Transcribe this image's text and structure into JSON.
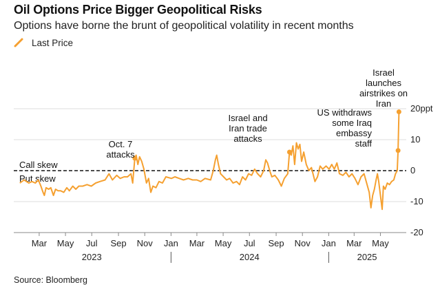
{
  "header": {
    "title": "Oil Options Price Bigger Geopolitical Risks",
    "subtitle": "Options have borne the brunt of geopolitical volatility in recent months"
  },
  "legend": {
    "label": "Last Price",
    "color": "#f5a030"
  },
  "source": "Source: Bloomberg",
  "chart_data": {
    "type": "line",
    "ylim": [
      -20,
      20
    ],
    "y_ticks": [
      20,
      10,
      0,
      -10,
      -20
    ],
    "y_tick_labels": [
      "20ppt",
      "10",
      "0",
      "-10",
      "-20"
    ],
    "grid": true,
    "x_ticks": [
      "Mar",
      "May",
      "Jul",
      "Sep",
      "Nov",
      "Jan",
      "Mar",
      "May",
      "Jul",
      "Sep",
      "Nov",
      "Jan",
      "Mar",
      "May"
    ],
    "years": [
      "2023",
      "2024",
      "2025"
    ],
    "reference_labels": [
      "Call skew",
      "Put skew"
    ],
    "series": [
      {
        "name": "Last Price",
        "color": "#f5a030",
        "points": [
          [
            "2023-01-15",
            -4.0
          ],
          [
            "2023-01-25",
            -3.0
          ],
          [
            "2023-02-05",
            -4.0
          ],
          [
            "2023-02-12",
            -3.5
          ],
          [
            "2023-02-20",
            -4.0
          ],
          [
            "2023-02-27",
            -3.0
          ],
          [
            "2023-03-05",
            -5.0
          ],
          [
            "2023-03-10",
            -7.0
          ],
          [
            "2023-03-13",
            -8.0
          ],
          [
            "2023-03-17",
            -5.5
          ],
          [
            "2023-03-23",
            -6.0
          ],
          [
            "2023-03-28",
            -5.5
          ],
          [
            "2023-04-03",
            -8.0
          ],
          [
            "2023-04-08",
            -6.0
          ],
          [
            "2023-04-14",
            -6.5
          ],
          [
            "2023-04-20",
            -6.5
          ],
          [
            "2023-04-27",
            -7.0
          ],
          [
            "2023-05-04",
            -5.5
          ],
          [
            "2023-05-10",
            -6.5
          ],
          [
            "2023-05-18",
            -5.0
          ],
          [
            "2023-05-25",
            -6.0
          ],
          [
            "2023-06-01",
            -5.0
          ],
          [
            "2023-06-10",
            -5.0
          ],
          [
            "2023-06-20",
            -4.5
          ],
          [
            "2023-06-30",
            -5.0
          ],
          [
            "2023-07-10",
            -4.0
          ],
          [
            "2023-07-20",
            -3.5
          ],
          [
            "2023-08-01",
            -3.0
          ],
          [
            "2023-08-10",
            -1.0
          ],
          [
            "2023-08-18",
            -3.0
          ],
          [
            "2023-08-28",
            -1.5
          ],
          [
            "2023-09-05",
            -2.5
          ],
          [
            "2023-09-14",
            -2.0
          ],
          [
            "2023-09-22",
            -2.0
          ],
          [
            "2023-09-30",
            -1.0
          ],
          [
            "2023-10-04",
            -4.0
          ],
          [
            "2023-10-09",
            4.0
          ],
          [
            "2023-10-12",
            5.0
          ],
          [
            "2023-10-16",
            2.0
          ],
          [
            "2023-10-20",
            4.5
          ],
          [
            "2023-10-25",
            3.0
          ],
          [
            "2023-10-30",
            0.5
          ],
          [
            "2023-11-05",
            -4.0
          ],
          [
            "2023-11-10",
            -2.5
          ],
          [
            "2023-11-15",
            -7.0
          ],
          [
            "2023-11-20",
            -5.0
          ],
          [
            "2023-11-27",
            -5.5
          ],
          [
            "2023-12-04",
            -3.5
          ],
          [
            "2023-12-12",
            -4.0
          ],
          [
            "2023-12-20",
            -2.0
          ],
          [
            "2024-01-02",
            -2.5
          ],
          [
            "2024-01-10",
            -2.0
          ],
          [
            "2024-01-20",
            -2.5
          ],
          [
            "2024-01-30",
            -3.0
          ],
          [
            "2024-02-10",
            -2.5
          ],
          [
            "2024-02-20",
            -3.0
          ],
          [
            "2024-03-01",
            -3.0
          ],
          [
            "2024-03-10",
            -3.5
          ],
          [
            "2024-03-20",
            -2.5
          ],
          [
            "2024-04-02",
            -3.0
          ],
          [
            "2024-04-08",
            0.0
          ],
          [
            "2024-04-13",
            3.5
          ],
          [
            "2024-04-16",
            5.0
          ],
          [
            "2024-04-20",
            2.0
          ],
          [
            "2024-04-25",
            -1.0
          ],
          [
            "2024-05-02",
            -2.0
          ],
          [
            "2024-05-09",
            -3.0
          ],
          [
            "2024-05-16",
            -2.5
          ],
          [
            "2024-05-24",
            -4.0
          ],
          [
            "2024-06-01",
            -3.5
          ],
          [
            "2024-06-08",
            -4.5
          ],
          [
            "2024-06-15",
            -2.0
          ],
          [
            "2024-06-22",
            -3.0
          ],
          [
            "2024-06-29",
            -1.0
          ],
          [
            "2024-07-06",
            -1.5
          ],
          [
            "2024-07-13",
            0.5
          ],
          [
            "2024-07-20",
            -1.0
          ],
          [
            "2024-07-27",
            -2.0
          ],
          [
            "2024-08-03",
            0.0
          ],
          [
            "2024-08-08",
            3.5
          ],
          [
            "2024-08-12",
            2.5
          ],
          [
            "2024-08-17",
            0.0
          ],
          [
            "2024-08-22",
            -2.0
          ],
          [
            "2024-08-29",
            -1.5
          ],
          [
            "2024-09-06",
            -3.0
          ],
          [
            "2024-09-13",
            -5.0
          ],
          [
            "2024-09-20",
            -2.5
          ],
          [
            "2024-09-28",
            -1.0
          ],
          [
            "2024-10-02",
            6.0
          ],
          [
            "2024-10-06",
            5.0
          ],
          [
            "2024-10-10",
            8.0
          ],
          [
            "2024-10-14",
            2.0
          ],
          [
            "2024-10-18",
            9.0
          ],
          [
            "2024-10-22",
            7.0
          ],
          [
            "2024-10-26",
            8.5
          ],
          [
            "2024-10-30",
            3.0
          ],
          [
            "2024-11-04",
            6.0
          ],
          [
            "2024-11-10",
            2.0
          ],
          [
            "2024-11-16",
            0.0
          ],
          [
            "2024-11-22",
            1.0
          ],
          [
            "2024-11-30",
            -3.5
          ],
          [
            "2024-12-06",
            -2.0
          ],
          [
            "2024-12-12",
            1.5
          ],
          [
            "2024-12-18",
            0.5
          ],
          [
            "2024-12-26",
            1.5
          ],
          [
            "2025-01-02",
            0.5
          ],
          [
            "2025-01-08",
            2.0
          ],
          [
            "2025-01-14",
            0.5
          ],
          [
            "2025-01-20",
            2.5
          ],
          [
            "2025-01-26",
            -1.0
          ],
          [
            "2025-02-03",
            -1.5
          ],
          [
            "2025-02-10",
            -0.5
          ],
          [
            "2025-02-17",
            -2.0
          ],
          [
            "2025-02-24",
            -1.0
          ],
          [
            "2025-03-03",
            -2.5
          ],
          [
            "2025-03-10",
            -4.5
          ],
          [
            "2025-03-17",
            -2.0
          ],
          [
            "2025-03-24",
            -1.0
          ],
          [
            "2025-03-31",
            -4.5
          ],
          [
            "2025-04-05",
            -7.0
          ],
          [
            "2025-04-09",
            -12.0
          ],
          [
            "2025-04-13",
            -8.0
          ],
          [
            "2025-04-17",
            -6.0
          ],
          [
            "2025-04-21",
            -3.0
          ],
          [
            "2025-04-24",
            -1.0
          ],
          [
            "2025-04-27",
            -3.5
          ],
          [
            "2025-05-01",
            -8.0
          ],
          [
            "2025-05-05",
            -12.5
          ],
          [
            "2025-05-08",
            -5.0
          ],
          [
            "2025-05-12",
            -6.0
          ],
          [
            "2025-05-17",
            -4.0
          ],
          [
            "2025-05-22",
            -4.5
          ],
          [
            "2025-05-27",
            -3.5
          ],
          [
            "2025-06-01",
            -3.0
          ],
          [
            "2025-06-05",
            -1.0
          ],
          [
            "2025-06-09",
            0.0
          ],
          [
            "2025-06-11",
            6.5
          ],
          [
            "2025-06-13",
            19.0
          ]
        ]
      }
    ],
    "annotations": [
      {
        "date": "2023-10-09",
        "value": 4.0,
        "lines": [
          "Oct. 7",
          "attacks"
        ]
      },
      {
        "date": "2024-10-02",
        "value": 6.0,
        "lines": [
          "Israel and",
          "Iran trade",
          "attacks"
        ]
      },
      {
        "date": "2025-06-11",
        "value": 6.5,
        "lines": [
          "US withdraws",
          "some Iraq",
          "embassy",
          "staff"
        ]
      },
      {
        "date": "2025-06-13",
        "value": 19.0,
        "lines": [
          "Israel",
          "launches",
          "airstrikes on",
          "Iran"
        ]
      }
    ]
  }
}
